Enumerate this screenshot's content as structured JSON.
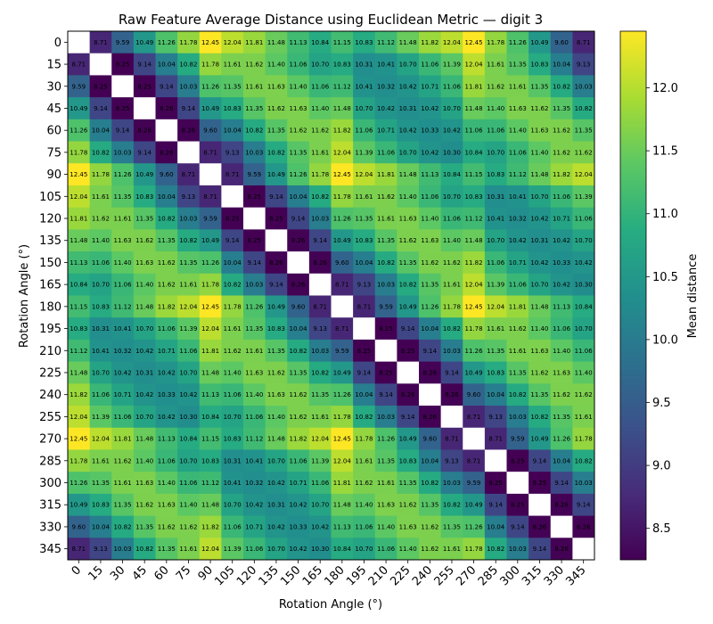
{
  "chart_data": {
    "type": "heatmap",
    "title": "Raw Feature Average Distance using Euclidean Metric — digit 3",
    "xlabel": "Rotation Angle (°)",
    "ylabel": "Rotation Angle (°)",
    "colorbar_label": "Mean distance",
    "colormap": "viridis",
    "vmin": 8.25,
    "vmax": 12.45,
    "colorbar_ticks": [
      "8.5",
      "9.0",
      "9.5",
      "10.0",
      "10.5",
      "11.0",
      "11.5",
      "12.0"
    ],
    "categories": [
      "0",
      "15",
      "30",
      "45",
      "60",
      "75",
      "90",
      "105",
      "120",
      "135",
      "150",
      "165",
      "180",
      "195",
      "210",
      "225",
      "240",
      "255",
      "270",
      "285",
      "300",
      "315",
      "330",
      "345"
    ],
    "diagonal": "blank",
    "values": [
      [
        null,
        8.71,
        9.59,
        10.49,
        11.26,
        11.78,
        12.45,
        12.04,
        11.81,
        11.48,
        11.13,
        10.84,
        11.15,
        10.83,
        11.12,
        11.48,
        11.82,
        12.04,
        12.45,
        11.78,
        11.26,
        10.49,
        9.6,
        8.71
      ],
      [
        8.71,
        null,
        8.25,
        9.14,
        10.04,
        10.82,
        11.78,
        11.61,
        11.62,
        11.4,
        11.06,
        10.7,
        10.83,
        10.31,
        10.41,
        10.7,
        11.06,
        11.39,
        12.04,
        11.61,
        11.35,
        10.83,
        10.04,
        9.13
      ],
      [
        9.59,
        8.25,
        null,
        8.25,
        9.14,
        10.03,
        11.26,
        11.35,
        11.61,
        11.63,
        11.4,
        11.06,
        11.12,
        10.41,
        10.32,
        10.42,
        10.71,
        11.06,
        11.81,
        11.62,
        11.61,
        11.35,
        10.82,
        10.03
      ],
      [
        10.49,
        9.14,
        8.25,
        null,
        8.26,
        9.14,
        10.49,
        10.83,
        11.35,
        11.62,
        11.63,
        11.4,
        11.48,
        10.7,
        10.42,
        10.31,
        10.42,
        10.7,
        11.48,
        11.4,
        11.63,
        11.62,
        11.35,
        10.82
      ],
      [
        11.26,
        10.04,
        9.14,
        8.26,
        null,
        8.26,
        9.6,
        10.04,
        10.82,
        11.35,
        11.62,
        11.62,
        11.82,
        11.06,
        10.71,
        10.42,
        10.33,
        10.42,
        11.06,
        11.06,
        11.4,
        11.63,
        11.62,
        11.35
      ],
      [
        11.78,
        10.82,
        10.03,
        9.14,
        8.26,
        null,
        8.71,
        9.13,
        10.03,
        10.82,
        11.35,
        11.61,
        12.04,
        11.39,
        11.06,
        10.7,
        10.42,
        10.3,
        10.84,
        10.7,
        11.06,
        11.4,
        11.62,
        11.62
      ],
      [
        12.45,
        11.78,
        11.26,
        10.49,
        9.6,
        8.71,
        null,
        8.71,
        9.59,
        10.49,
        11.26,
        11.78,
        12.45,
        12.04,
        11.81,
        11.48,
        11.13,
        10.84,
        11.15,
        10.83,
        11.12,
        11.48,
        11.82,
        12.04
      ],
      [
        12.04,
        11.61,
        11.35,
        10.83,
        10.04,
        9.13,
        8.71,
        null,
        8.25,
        9.14,
        10.04,
        10.82,
        11.78,
        11.61,
        11.62,
        11.4,
        11.06,
        10.7,
        10.83,
        10.31,
        10.41,
        10.7,
        11.06,
        11.39
      ],
      [
        11.81,
        11.62,
        11.61,
        11.35,
        10.82,
        10.03,
        9.59,
        8.25,
        null,
        8.25,
        9.14,
        10.03,
        11.26,
        11.35,
        11.61,
        11.63,
        11.4,
        11.06,
        11.12,
        10.41,
        10.32,
        10.42,
        10.71,
        11.06
      ],
      [
        11.48,
        11.4,
        11.63,
        11.62,
        11.35,
        10.82,
        10.49,
        9.14,
        8.25,
        null,
        8.26,
        9.14,
        10.49,
        10.83,
        11.35,
        11.62,
        11.63,
        11.4,
        11.48,
        10.7,
        10.42,
        10.31,
        10.42,
        10.7
      ],
      [
        11.13,
        11.06,
        11.4,
        11.63,
        11.62,
        11.35,
        11.26,
        10.04,
        9.14,
        8.26,
        null,
        8.26,
        9.6,
        10.04,
        10.82,
        11.35,
        11.62,
        11.62,
        11.82,
        11.06,
        10.71,
        10.42,
        10.33,
        10.42
      ],
      [
        10.84,
        10.7,
        11.06,
        11.4,
        11.62,
        11.61,
        11.78,
        10.82,
        10.03,
        9.14,
        8.26,
        null,
        8.71,
        9.13,
        10.03,
        10.82,
        11.35,
        11.61,
        12.04,
        11.39,
        11.06,
        10.7,
        10.42,
        10.3
      ],
      [
        11.15,
        10.83,
        11.12,
        11.48,
        11.82,
        12.04,
        12.45,
        11.78,
        11.26,
        10.49,
        9.6,
        8.71,
        null,
        8.71,
        9.59,
        10.49,
        11.26,
        11.78,
        12.45,
        12.04,
        11.81,
        11.48,
        11.13,
        10.84
      ],
      [
        10.83,
        10.31,
        10.41,
        10.7,
        11.06,
        11.39,
        12.04,
        11.61,
        11.35,
        10.83,
        10.04,
        9.13,
        8.71,
        null,
        8.25,
        9.14,
        10.04,
        10.82,
        11.78,
        11.61,
        11.62,
        11.4,
        11.06,
        10.7
      ],
      [
        11.12,
        10.41,
        10.32,
        10.42,
        10.71,
        11.06,
        11.81,
        11.62,
        11.61,
        11.35,
        10.82,
        10.03,
        9.59,
        8.25,
        null,
        8.25,
        9.14,
        10.03,
        11.26,
        11.35,
        11.61,
        11.63,
        11.4,
        11.06
      ],
      [
        11.48,
        10.7,
        10.42,
        10.31,
        10.42,
        10.7,
        11.48,
        11.4,
        11.63,
        11.62,
        11.35,
        10.82,
        10.49,
        9.14,
        8.25,
        null,
        8.26,
        9.14,
        10.49,
        10.83,
        11.35,
        11.62,
        11.63,
        11.4
      ],
      [
        11.82,
        11.06,
        10.71,
        10.42,
        10.33,
        10.42,
        11.13,
        11.06,
        11.4,
        11.63,
        11.62,
        11.35,
        11.26,
        10.04,
        9.14,
        8.26,
        null,
        8.26,
        9.6,
        10.04,
        10.82,
        11.35,
        11.62,
        11.62
      ],
      [
        12.04,
        11.39,
        11.06,
        10.7,
        10.42,
        10.3,
        10.84,
        10.7,
        11.06,
        11.4,
        11.62,
        11.61,
        11.78,
        10.82,
        10.03,
        9.14,
        8.26,
        null,
        8.71,
        9.13,
        10.03,
        10.82,
        11.35,
        11.61
      ],
      [
        12.45,
        12.04,
        11.81,
        11.48,
        11.13,
        10.84,
        11.15,
        10.83,
        11.12,
        11.48,
        11.82,
        12.04,
        12.45,
        11.78,
        11.26,
        10.49,
        9.6,
        8.71,
        null,
        8.71,
        9.59,
        10.49,
        11.26,
        11.78
      ],
      [
        11.78,
        11.61,
        11.62,
        11.4,
        11.06,
        10.7,
        10.83,
        10.31,
        10.41,
        10.7,
        11.06,
        11.39,
        12.04,
        11.61,
        11.35,
        10.83,
        10.04,
        9.13,
        8.71,
        null,
        8.25,
        9.14,
        10.04,
        10.82
      ],
      [
        11.26,
        11.35,
        11.61,
        11.63,
        11.4,
        11.06,
        11.12,
        10.41,
        10.32,
        10.42,
        10.71,
        11.06,
        11.81,
        11.62,
        11.61,
        11.35,
        10.82,
        10.03,
        9.59,
        8.25,
        null,
        8.25,
        9.14,
        10.03
      ],
      [
        10.49,
        10.83,
        11.35,
        11.62,
        11.63,
        11.4,
        11.48,
        10.7,
        10.42,
        10.31,
        10.42,
        10.7,
        11.48,
        11.4,
        11.63,
        11.62,
        11.35,
        10.82,
        10.49,
        9.14,
        8.25,
        null,
        8.26,
        9.14
      ],
      [
        9.6,
        10.04,
        10.82,
        11.35,
        11.62,
        11.62,
        11.82,
        11.06,
        10.71,
        10.42,
        10.33,
        10.42,
        11.13,
        11.06,
        11.4,
        11.63,
        11.62,
        11.35,
        11.26,
        10.04,
        9.14,
        8.26,
        null,
        8.26
      ],
      [
        8.71,
        9.13,
        10.03,
        10.82,
        11.35,
        11.61,
        12.04,
        11.39,
        11.06,
        10.7,
        10.42,
        10.3,
        10.84,
        10.7,
        11.06,
        11.4,
        11.62,
        11.61,
        11.78,
        10.82,
        10.03,
        9.14,
        8.26,
        null
      ]
    ]
  }
}
